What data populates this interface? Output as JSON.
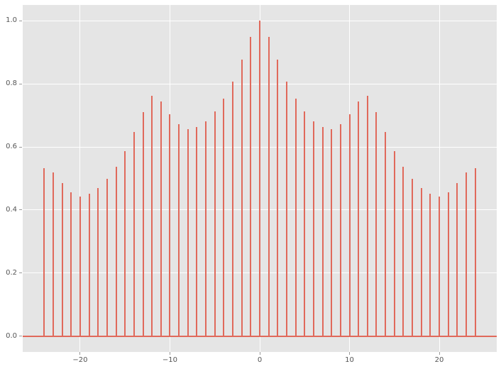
{
  "chart_data": {
    "type": "stem",
    "title": "",
    "xlabel": "",
    "ylabel": "",
    "legend": null,
    "grid": true,
    "baseline": 0.0,
    "xlim": [
      -26.4,
      26.4
    ],
    "ylim": [
      -0.05,
      1.05
    ],
    "x": [
      -24,
      -23,
      -22,
      -21,
      -20,
      -19,
      -18,
      -17,
      -16,
      -15,
      -14,
      -13,
      -12,
      -11,
      -10,
      -9,
      -8,
      -7,
      -6,
      -5,
      -4,
      -3,
      -2,
      -1,
      0,
      1,
      2,
      3,
      4,
      5,
      6,
      7,
      8,
      9,
      10,
      11,
      12,
      13,
      14,
      15,
      16,
      17,
      18,
      19,
      20,
      21,
      22,
      23,
      24
    ],
    "values": [
      0.533,
      0.518,
      0.486,
      0.456,
      0.443,
      0.451,
      0.469,
      0.5,
      0.538,
      0.587,
      0.648,
      0.711,
      0.762,
      0.743,
      0.703,
      0.671,
      0.657,
      0.662,
      0.682,
      0.713,
      0.752,
      0.807,
      0.876,
      0.949,
      1.0,
      0.949,
      0.876,
      0.807,
      0.752,
      0.713,
      0.682,
      0.662,
      0.657,
      0.671,
      0.703,
      0.743,
      0.762,
      0.711,
      0.648,
      0.587,
      0.538,
      0.5,
      0.469,
      0.451,
      0.443,
      0.456,
      0.486,
      0.518,
      0.533
    ],
    "xticks": {
      "values": [
        -20,
        -10,
        0,
        10,
        20
      ],
      "labels": [
        "−20",
        "−10",
        "0",
        "10",
        "20"
      ]
    },
    "yticks": {
      "values": [
        0.0,
        0.2,
        0.4,
        0.6,
        0.8,
        1.0
      ],
      "labels": [
        "0.0",
        "0.2",
        "0.4",
        "0.6",
        "0.8",
        "1.0"
      ]
    },
    "style": {
      "figure_bg": "#ffffff",
      "axes_bg": "#e5e5e5",
      "grid_color": "#ffffff",
      "stem_color": "#e0695b",
      "baseline_color": "#e0695b",
      "tick_mark_color": "#999999",
      "tick_label_color": "#555555"
    }
  }
}
